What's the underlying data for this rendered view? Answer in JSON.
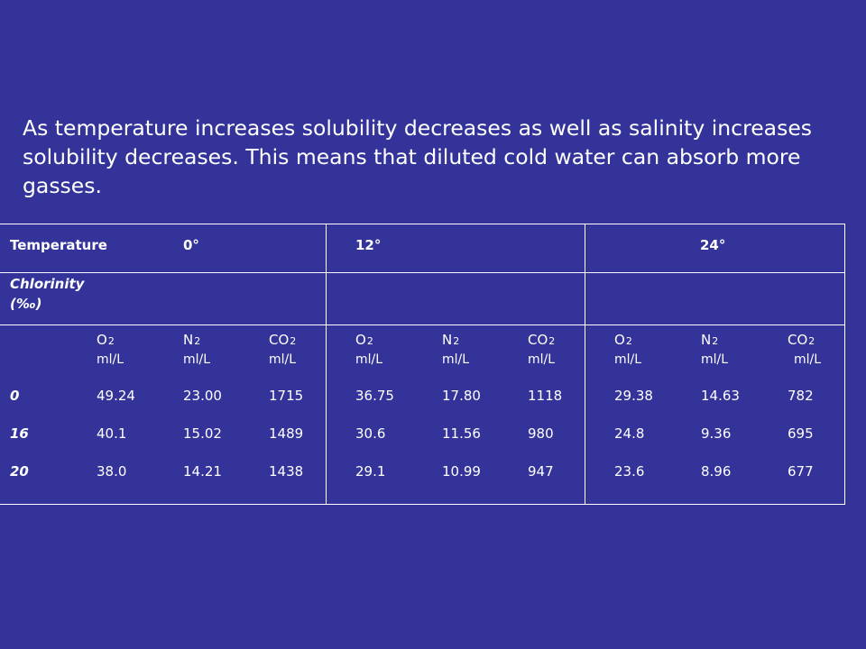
{
  "intro_text": "As temperature increases solubility decreases as well as salinity increases solubility decreases. This means that diluted cold water can absorb more gasses.",
  "table": {
    "temperature_label": "Temperature",
    "temperatures": [
      "0°",
      "12°",
      "24°"
    ],
    "chlorinity_label": "Chlorinity",
    "chlorinity_unit": "(‰)",
    "gas_headers": [
      {
        "gas": "O",
        "sub": "2",
        "unit": "ml/L"
      },
      {
        "gas": "N",
        "sub": "2",
        "unit": "ml/L"
      },
      {
        "gas": "CO",
        "sub": "2",
        "unit": "ml/L"
      },
      {
        "gas": "O",
        "sub": "2",
        "unit": "ml/L"
      },
      {
        "gas": "N",
        "sub": "2",
        "unit": "ml/L"
      },
      {
        "gas": "CO",
        "sub": "2",
        "unit": "ml/L"
      },
      {
        "gas": "O",
        "sub": "2",
        "unit": "ml/L"
      },
      {
        "gas": "N",
        "sub": "2",
        "unit": "ml/L"
      },
      {
        "gas": "CO",
        "sub": "2",
        "unit": "ml/L"
      }
    ],
    "rows": [
      {
        "chlorinity": "0",
        "values": [
          "49.24",
          "23.00",
          "1715",
          "36.75",
          "17.80",
          "1118",
          "29.38",
          "14.63",
          "782"
        ]
      },
      {
        "chlorinity": "16",
        "values": [
          "40.1",
          "15.02",
          "1489",
          "30.6",
          "11.56",
          "980",
          "24.8",
          "9.36",
          "695"
        ]
      },
      {
        "chlorinity": "20",
        "values": [
          "38.0",
          "14.21",
          "1438",
          "29.1",
          "10.99",
          "947",
          "23.6",
          "8.96",
          "677"
        ]
      }
    ]
  },
  "colors": {
    "background": "#333399",
    "text": "#ffffff",
    "rules": "#ffffff"
  }
}
